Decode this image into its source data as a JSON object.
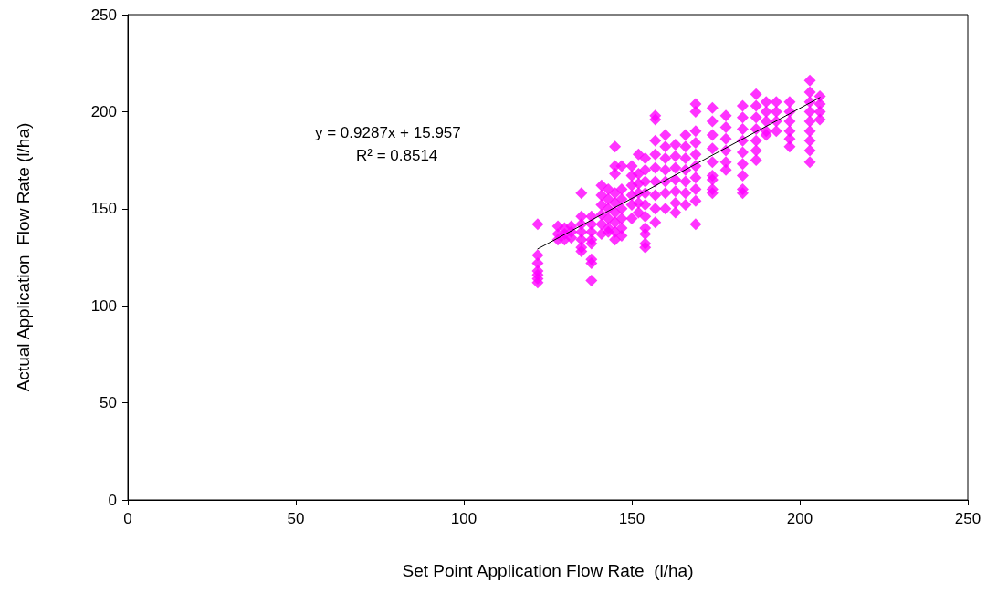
{
  "chart_data": {
    "type": "scatter",
    "xlabel": "Set Point Application Flow Rate  (l/ha)",
    "ylabel": "Actual Application  Flow Rate (l/ha)",
    "xlim": [
      0,
      250
    ],
    "xticks": [
      0,
      50,
      100,
      150,
      200,
      250
    ],
    "ylim": [
      0,
      250
    ],
    "yticks": [
      0,
      50,
      100,
      150,
      200,
      250
    ],
    "grid": false,
    "marker": "diamond",
    "annotations": [
      "y = 0.9287x + 15.957",
      "R² = 0.8514"
    ],
    "series": [
      {
        "color": "#ff00ff",
        "x": [
          122,
          122,
          122,
          122,
          122,
          122,
          122,
          128,
          128,
          128,
          130,
          130,
          130,
          132,
          132,
          132,
          135,
          135,
          135,
          135,
          135,
          135,
          135,
          138,
          138,
          138,
          138,
          138,
          138,
          138,
          138,
          141,
          141,
          141,
          141,
          141,
          141,
          143,
          143,
          143,
          143,
          143,
          143,
          145,
          145,
          145,
          145,
          145,
          145,
          145,
          145,
          145,
          147,
          147,
          147,
          147,
          147,
          147,
          147,
          150,
          150,
          150,
          150,
          150,
          150,
          152,
          152,
          152,
          152,
          152,
          152,
          154,
          154,
          154,
          154,
          154,
          154,
          154,
          154,
          154,
          154,
          157,
          157,
          157,
          157,
          157,
          157,
          157,
          157,
          157,
          160,
          160,
          160,
          160,
          160,
          160,
          160,
          163,
          163,
          163,
          163,
          163,
          163,
          163,
          166,
          166,
          166,
          166,
          166,
          166,
          166,
          169,
          169,
          169,
          169,
          169,
          169,
          169,
          169,
          169,
          169,
          174,
          174,
          174,
          174,
          174,
          174,
          174,
          174,
          174,
          178,
          178,
          178,
          178,
          178,
          178,
          183,
          183,
          183,
          183,
          183,
          183,
          183,
          183,
          183,
          187,
          187,
          187,
          187,
          187,
          187,
          187,
          190,
          190,
          190,
          190,
          190,
          193,
          193,
          193,
          193,
          197,
          197,
          197,
          197,
          197,
          197,
          203,
          203,
          203,
          203,
          203,
          203,
          203,
          203,
          203,
          206,
          206,
          206,
          206
        ],
        "values": [
          142,
          126,
          122,
          118,
          116,
          114,
          112,
          134,
          137,
          141,
          134,
          137,
          140,
          135,
          138,
          141,
          158,
          146,
          142,
          138,
          134,
          130,
          128,
          146,
          142,
          138,
          134,
          132,
          124,
          122,
          113,
          162,
          157,
          152,
          147,
          142,
          137,
          160,
          155,
          150,
          145,
          140,
          138,
          182,
          172,
          168,
          158,
          153,
          148,
          143,
          138,
          134,
          172,
          160,
          155,
          150,
          145,
          140,
          136,
          172,
          167,
          162,
          157,
          152,
          145,
          178,
          168,
          163,
          158,
          153,
          148,
          176,
          170,
          164,
          158,
          152,
          146,
          140,
          137,
          132,
          130,
          198,
          196,
          185,
          178,
          171,
          164,
          157,
          150,
          143,
          188,
          182,
          176,
          170,
          164,
          158,
          150,
          183,
          177,
          171,
          165,
          159,
          153,
          148,
          188,
          182,
          176,
          170,
          164,
          158,
          152,
          204,
          200,
          190,
          184,
          178,
          172,
          166,
          160,
          154,
          142,
          202,
          195,
          188,
          181,
          174,
          167,
          165,
          160,
          158,
          198,
          192,
          186,
          180,
          174,
          170,
          203,
          197,
          191,
          185,
          179,
          173,
          167,
          160,
          158,
          209,
          203,
          197,
          191,
          185,
          180,
          175,
          205,
          200,
          195,
          190,
          188,
          205,
          200,
          195,
          190,
          205,
          200,
          195,
          190,
          186,
          182,
          216,
          210,
          205,
          200,
          195,
          190,
          185,
          180,
          174,
          208,
          204,
          200,
          196
        ]
      },
      {
        "type": "line",
        "color": "#000000",
        "x": [
          122,
          206
        ],
        "values": [
          129.3,
          207.3
        ],
        "marker": "none",
        "line_style": "solid"
      }
    ]
  }
}
